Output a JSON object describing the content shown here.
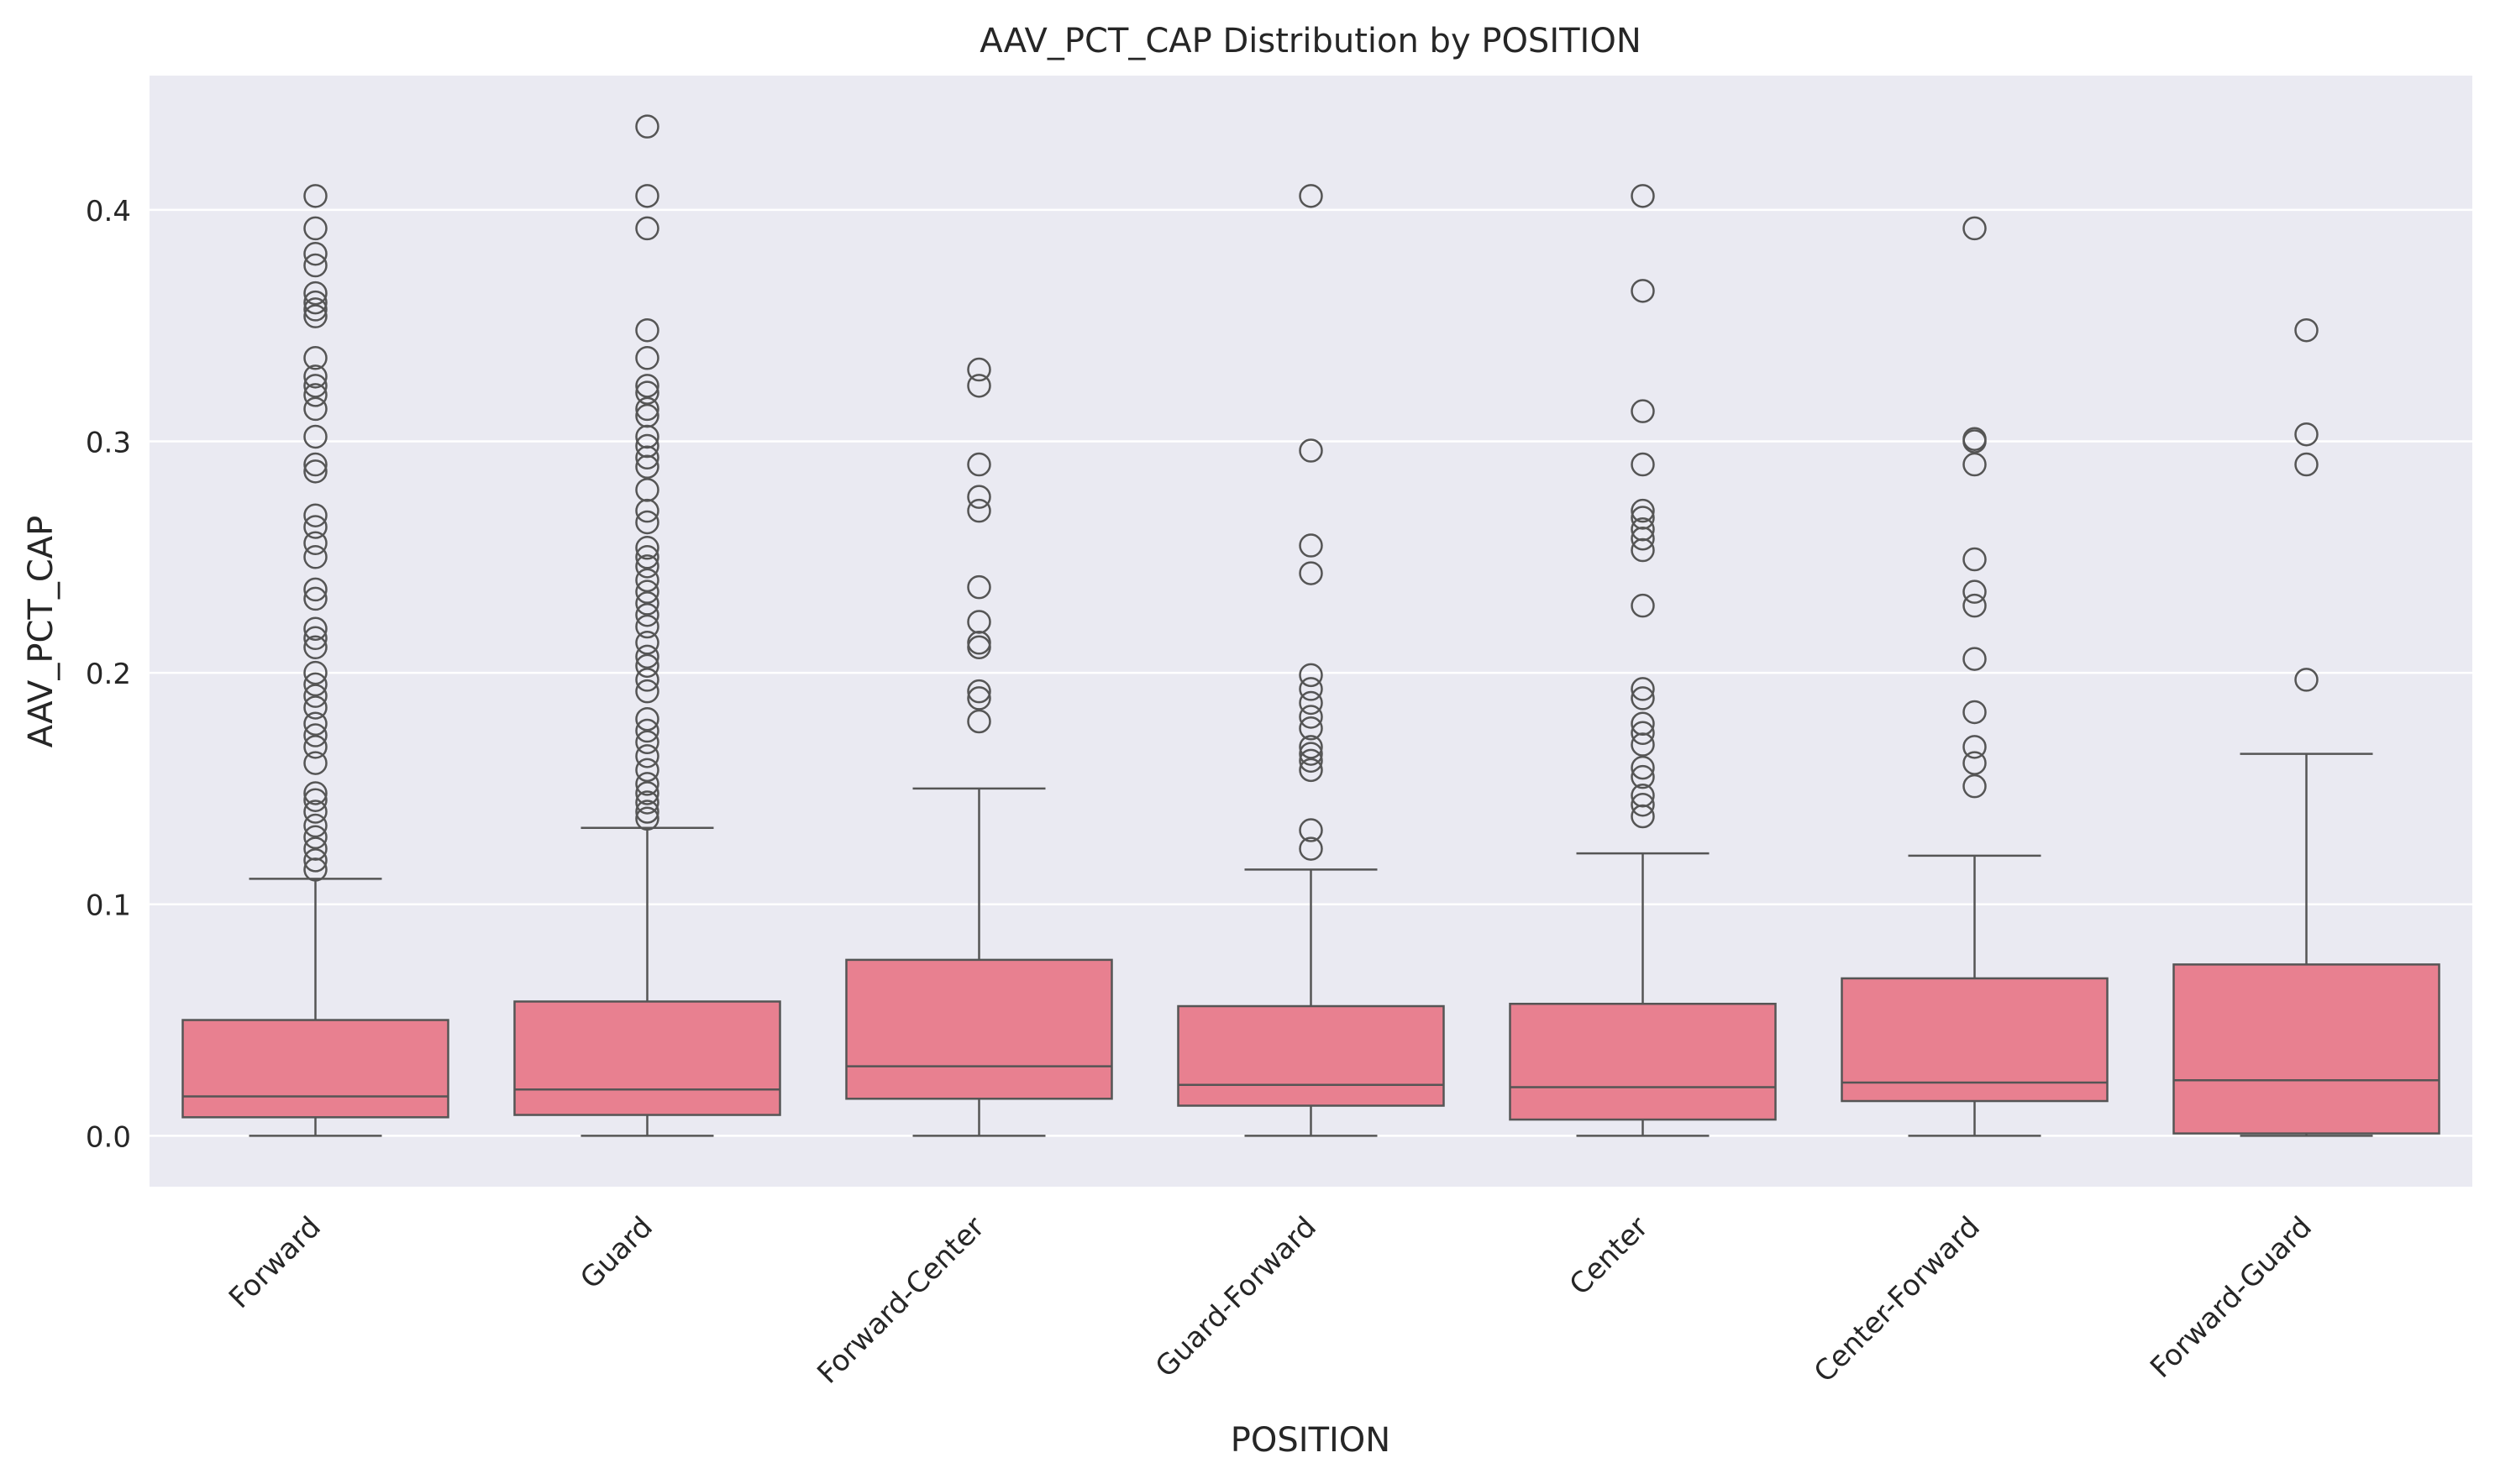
{
  "chart_data": {
    "type": "box",
    "title": "AAV_PCT_CAP Distribution by POSITION",
    "xlabel": "POSITION",
    "ylabel": "AAV_PCT_CAP",
    "ylim": [
      -0.022,
      0.458
    ],
    "yticks": [
      0.0,
      0.1,
      0.2,
      0.3,
      0.4
    ],
    "ytick_labels": [
      "0.0",
      "0.1",
      "0.2",
      "0.3",
      "0.4"
    ],
    "grid": true,
    "colors": {
      "box_fill": "#e88090",
      "line": "#555555",
      "background": "#eaeaf2",
      "grid": "#ffffff"
    },
    "categories": [
      "Forward",
      "Guard",
      "Forward-Center",
      "Guard-Forward",
      "Center",
      "Center-Forward",
      "Forward-Guard"
    ],
    "boxes": [
      {
        "whisker_low": 0.0,
        "q1": 0.008,
        "median": 0.017,
        "q3": 0.05,
        "whisker_high": 0.111,
        "outliers": [
          0.406,
          0.392,
          0.381,
          0.376,
          0.364,
          0.36,
          0.357,
          0.354,
          0.336,
          0.328,
          0.324,
          0.32,
          0.314,
          0.302,
          0.29,
          0.287,
          0.268,
          0.263,
          0.256,
          0.25,
          0.236,
          0.232,
          0.219,
          0.215,
          0.211,
          0.2,
          0.195,
          0.19,
          0.185,
          0.178,
          0.173,
          0.168,
          0.161,
          0.148,
          0.145,
          0.14,
          0.134,
          0.129,
          0.124,
          0.119,
          0.115
        ]
      },
      {
        "whisker_low": 0.0,
        "q1": 0.009,
        "median": 0.02,
        "q3": 0.058,
        "whisker_high": 0.133,
        "outliers": [
          0.436,
          0.406,
          0.392,
          0.348,
          0.336,
          0.324,
          0.321,
          0.314,
          0.311,
          0.302,
          0.298,
          0.293,
          0.289,
          0.279,
          0.27,
          0.265,
          0.254,
          0.25,
          0.246,
          0.24,
          0.235,
          0.23,
          0.225,
          0.22,
          0.213,
          0.207,
          0.203,
          0.197,
          0.192,
          0.18,
          0.175,
          0.17,
          0.164,
          0.158,
          0.152,
          0.148,
          0.144,
          0.14,
          0.137
        ]
      },
      {
        "whisker_low": 0.0,
        "q1": 0.016,
        "median": 0.03,
        "q3": 0.076,
        "whisker_high": 0.15,
        "outliers": [
          0.331,
          0.324,
          0.29,
          0.276,
          0.27,
          0.237,
          0.222,
          0.213,
          0.211,
          0.192,
          0.189,
          0.179
        ]
      },
      {
        "whisker_low": 0.0,
        "q1": 0.013,
        "median": 0.022,
        "q3": 0.056,
        "whisker_high": 0.115,
        "outliers": [
          0.406,
          0.296,
          0.255,
          0.243,
          0.199,
          0.193,
          0.187,
          0.181,
          0.176,
          0.168,
          0.165,
          0.162,
          0.158,
          0.132,
          0.124
        ]
      },
      {
        "whisker_low": 0.0,
        "q1": 0.007,
        "median": 0.021,
        "q3": 0.057,
        "whisker_high": 0.122,
        "outliers": [
          0.406,
          0.365,
          0.313,
          0.29,
          0.27,
          0.267,
          0.262,
          0.258,
          0.253,
          0.229,
          0.193,
          0.189,
          0.178,
          0.174,
          0.169,
          0.159,
          0.155,
          0.147,
          0.143,
          0.138
        ]
      },
      {
        "whisker_low": 0.0,
        "q1": 0.015,
        "median": 0.023,
        "q3": 0.068,
        "whisker_high": 0.121,
        "outliers": [
          0.392,
          0.301,
          0.3,
          0.29,
          0.249,
          0.235,
          0.229,
          0.206,
          0.183,
          0.168,
          0.161,
          0.151
        ]
      },
      {
        "whisker_low": 0.0,
        "q1": 0.001,
        "median": 0.024,
        "q3": 0.074,
        "whisker_high": 0.165,
        "outliers": [
          0.348,
          0.303,
          0.29,
          0.197
        ]
      }
    ]
  }
}
